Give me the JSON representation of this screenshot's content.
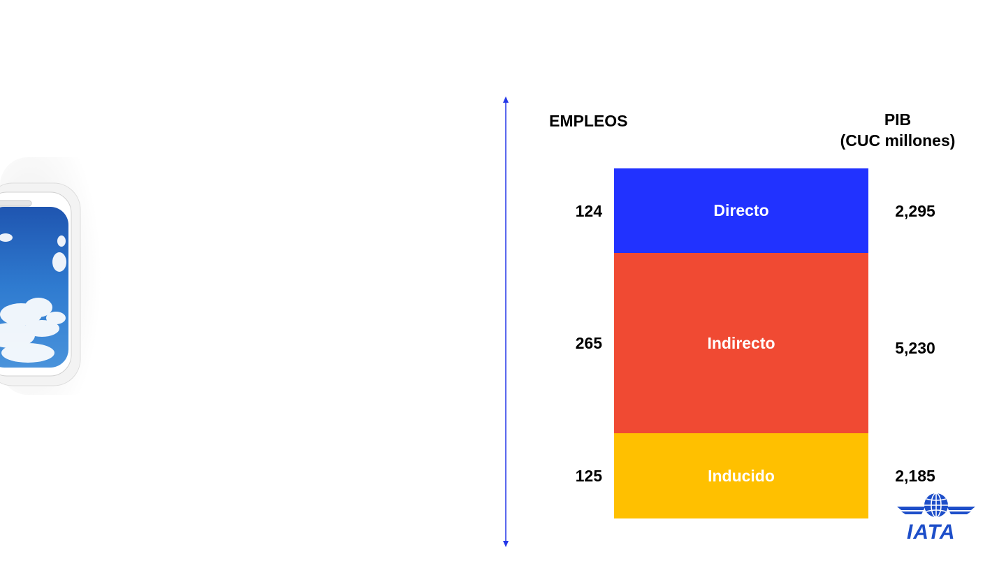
{
  "headers": {
    "left": "EMPLEOS",
    "right_line1": "PIB",
    "right_line2": "(CUC millones)"
  },
  "colors": {
    "directo": "#2132ff",
    "indirecto": "#f04a33",
    "inducido": "#ffc000",
    "axis": "#2437e8",
    "logo": "#1d4ec9"
  },
  "chart_data": {
    "type": "bar",
    "stacked": true,
    "categories": [
      "Directo",
      "Indirecto",
      "Inducido"
    ],
    "series": [
      {
        "name": "EMPLEOS",
        "values": [
          124,
          265,
          125
        ]
      },
      {
        "name": "PIB (CUC millones)",
        "values": [
          2295,
          5230,
          2185
        ]
      }
    ],
    "value_labels_left": [
      "124",
      "265",
      "125"
    ],
    "value_labels_right": [
      "2,295",
      "5,230",
      "2,185"
    ],
    "segment_labels": [
      "Directo",
      "Indirecto",
      "Inducido"
    ]
  },
  "logo": {
    "text": "IATA"
  }
}
